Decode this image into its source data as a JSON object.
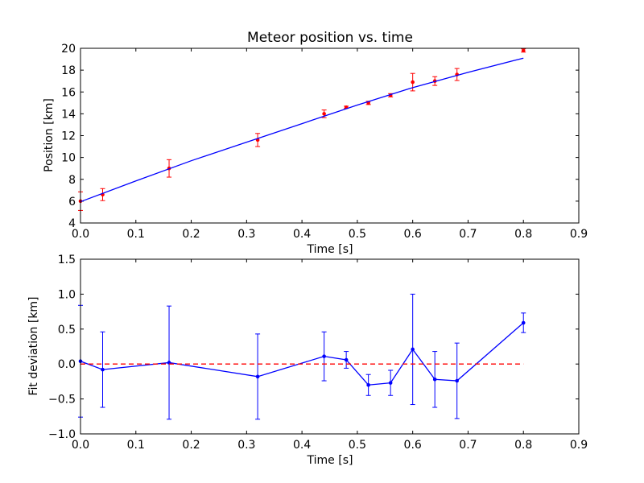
{
  "chart_data": [
    {
      "type": "scatter",
      "title": "Meteor position vs. time",
      "xlabel": "Time [s]",
      "ylabel": "Position [km]",
      "xlim": [
        0.0,
        0.9
      ],
      "ylim": [
        4,
        20
      ],
      "xticks": [
        0.0,
        0.1,
        0.2,
        0.3,
        0.4,
        0.5,
        0.6,
        0.7,
        0.8,
        0.9
      ],
      "xtick_labels": [
        "0.0",
        "0.1",
        "0.2",
        "0.3",
        "0.4",
        "0.5",
        "0.6",
        "0.7",
        "0.8",
        "0.9"
      ],
      "yticks": [
        4,
        6,
        8,
        10,
        12,
        14,
        16,
        18,
        20
      ],
      "ytick_labels": [
        "4",
        "6",
        "8",
        "10",
        "12",
        "14",
        "16",
        "18",
        "20"
      ],
      "grid": false,
      "series": [
        {
          "kind": "errorbar-points",
          "color": "#ff0000",
          "x": [
            0.0,
            0.04,
            0.16,
            0.32,
            0.44,
            0.48,
            0.52,
            0.56,
            0.6,
            0.64,
            0.68,
            0.8
          ],
          "y": [
            6.0,
            6.6,
            9.0,
            11.6,
            14.0,
            14.6,
            15.0,
            15.7,
            16.9,
            17.0,
            17.6,
            19.8
          ],
          "yerr": [
            0.85,
            0.55,
            0.8,
            0.6,
            0.35,
            0.1,
            0.15,
            0.15,
            0.8,
            0.4,
            0.55,
            0.15
          ]
        },
        {
          "kind": "fit-line",
          "color": "#0000ff",
          "x": [
            0.0,
            0.1,
            0.2,
            0.3,
            0.4,
            0.5,
            0.6,
            0.7,
            0.8
          ],
          "y": [
            5.95,
            7.85,
            9.7,
            11.4,
            13.1,
            14.8,
            16.4,
            17.8,
            19.1
          ]
        }
      ]
    },
    {
      "type": "line",
      "title": "",
      "xlabel": "Time [s]",
      "ylabel": "Fit deviation [km]",
      "xlim": [
        0.0,
        0.9
      ],
      "ylim": [
        -1.0,
        1.5
      ],
      "xticks": [
        0.0,
        0.1,
        0.2,
        0.3,
        0.4,
        0.5,
        0.6,
        0.7,
        0.8,
        0.9
      ],
      "xtick_labels": [
        "0.0",
        "0.1",
        "0.2",
        "0.3",
        "0.4",
        "0.5",
        "0.6",
        "0.7",
        "0.8",
        "0.9"
      ],
      "yticks": [
        -1.0,
        -0.5,
        0.0,
        0.5,
        1.0,
        1.5
      ],
      "ytick_labels": [
        "−1.0",
        "−0.5",
        "0.0",
        "0.5",
        "1.0",
        "1.5"
      ],
      "grid": false,
      "series": [
        {
          "kind": "errorbar-line",
          "color": "#0000ff",
          "x": [
            0.0,
            0.04,
            0.16,
            0.32,
            0.44,
            0.48,
            0.52,
            0.56,
            0.6,
            0.64,
            0.68,
            0.8
          ],
          "y": [
            0.04,
            -0.08,
            0.02,
            -0.18,
            0.11,
            0.06,
            -0.3,
            -0.27,
            0.21,
            -0.22,
            -0.24,
            0.59
          ],
          "yerr": [
            0.8,
            0.54,
            0.81,
            0.61,
            0.35,
            0.12,
            0.15,
            0.18,
            0.79,
            0.4,
            0.54,
            0.14
          ]
        },
        {
          "kind": "zero-line",
          "color": "#ff0000",
          "style": "dashed",
          "x": [
            0.0,
            0.8
          ],
          "y": [
            0.0,
            0.0
          ]
        }
      ]
    }
  ]
}
